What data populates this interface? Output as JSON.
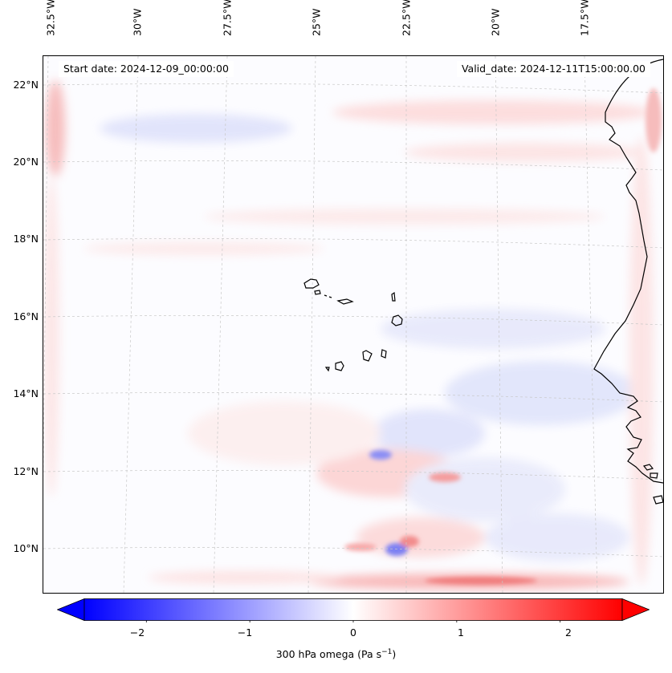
{
  "header": {
    "start_date": "Start date: 2024-12-09_00:00:00",
    "valid_date": "Valid_date: 2024-12-11T15:00:00.00"
  },
  "longitude_ticks": [
    "32.5°W",
    "30°W",
    "27.5°W",
    "25°W",
    "22.5°W",
    "20°W",
    "17.5°W"
  ],
  "latitude_ticks": [
    "22°N",
    "20°N",
    "18°N",
    "16°N",
    "14°N",
    "12°N",
    "10°N"
  ],
  "colorbar": {
    "label_main": "300 hPa omega (Pa s",
    "label_exp": "−1",
    "label_close": ")",
    "ticks": [
      "−2",
      "−1",
      "0",
      "1",
      "2"
    ],
    "range": [
      -2.6,
      2.6
    ],
    "colormap": "bwr",
    "extend": "both"
  },
  "colors": {
    "negative": "#0000ff",
    "neutral": "#ffffff",
    "positive": "#ff0000",
    "coastline": "#000000",
    "gridline": "#c8c8c8"
  },
  "map": {
    "projection": "Lambert conformal",
    "region": "Eastern tropical Atlantic, Cape Verde and West African coast",
    "grid": true
  }
}
